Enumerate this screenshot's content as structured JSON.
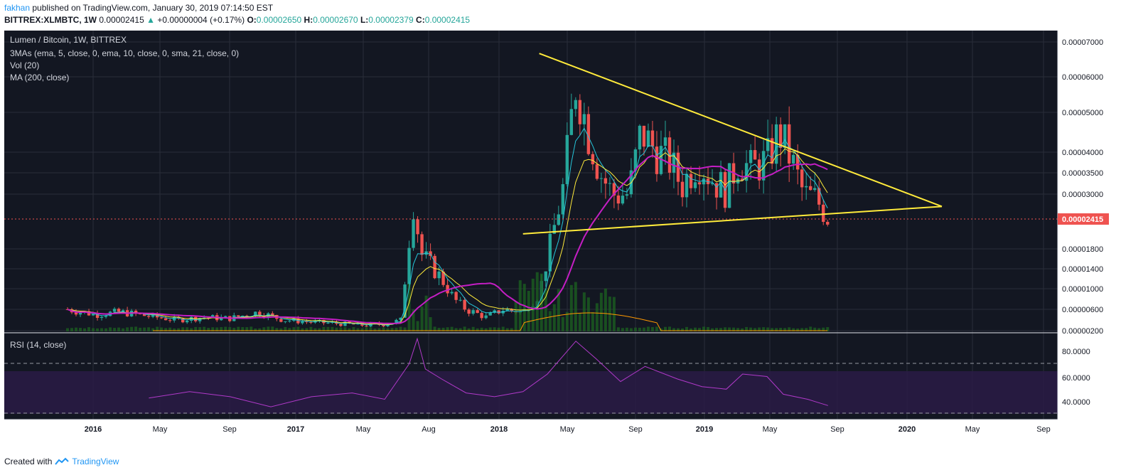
{
  "header": {
    "author": "fakhan",
    "published": "published on TradingView.com, January 30, 2019 07:14:50 EST",
    "symbol": "BITTREX:XLMBTC, 1W",
    "last": "0.00002415",
    "arrow": "▲",
    "change": "+0.00000004 (+0.17%)",
    "o_label": "O:",
    "o_value": "0.00002650",
    "h_label": "H:",
    "h_value": "0.00002670",
    "l_label": "L:",
    "l_value": "0.00002379",
    "c_label": "C:",
    "c_value": "0.00002415"
  },
  "legend": {
    "title": "Lumen / Bitcoin, 1W, BITTREX",
    "mas": "3MAs (ema, 5, close, 0, ema, 10, close, 0, sma, 21, close, 0)",
    "vol": "Vol (20)",
    "ma": "MA (200, close)",
    "rsi": "RSI (14, close)"
  },
  "footer": {
    "created": "Created with",
    "brand": "TradingView"
  },
  "colors": {
    "background": "#131722",
    "grid": "#2a2e39",
    "bull": "#26a69a",
    "bear": "#ef5350",
    "ema5": "#26c6da",
    "ema10": "#ffeb3b",
    "sma21": "#c41ec4",
    "ma200": "#ff9800",
    "trendline": "#ffeb3b",
    "rsi": "#9c27b0",
    "price_label": "#ef5350"
  },
  "chart_data": {
    "type": "candlestick",
    "symbol": "XLMBTC",
    "interval": "1W",
    "exchange": "BITTREX",
    "last_price": 2.415e-05,
    "price_axis_ticks": [
      "0.00007000",
      "0.00006000",
      "0.00005000",
      "0.00004000",
      "0.00003500",
      "0.00003000",
      "0.00001800",
      "0.00001400",
      "0.00001000",
      "0.00000600",
      "0.00000200"
    ],
    "price_label": "0.00002415",
    "time_axis_ticks": [
      "2016",
      "May",
      "Sep",
      "2017",
      "May",
      "Aug",
      "2018",
      "May",
      "Sep",
      "2019",
      "May",
      "Sep",
      "2020",
      "May",
      "Sep"
    ],
    "rsi_axis_ticks": [
      "80.0000",
      "60.0000",
      "40.0000"
    ],
    "rsi_bands": [
      30,
      70
    ],
    "price_path": [
      [
        0.0,
        6e-06
      ],
      [
        0.07,
        5e-06
      ],
      [
        0.13,
        5.5e-06
      ],
      [
        0.2,
        4.7e-06
      ],
      [
        0.27,
        4e-06
      ],
      [
        0.33,
        4.5e-06
      ],
      [
        0.4,
        4.3e-06
      ],
      [
        0.47,
        5.5e-06
      ],
      [
        0.53,
        4e-06
      ],
      [
        0.6,
        3.6e-06
      ],
      [
        0.67,
        3.3e-06
      ],
      [
        0.73,
        3e-06
      ],
      [
        0.78,
        3.2e-06
      ],
      [
        0.82,
        4e-06
      ],
      [
        0.85,
        2.85e-05
      ],
      [
        0.87,
        1.7e-05
      ],
      [
        0.89,
        1.5e-05
      ],
      [
        0.92,
        1.2e-05
      ],
      [
        0.95,
        8e-06
      ],
      [
        0.98,
        6e-06
      ],
      [
        1.03,
        4.5e-06
      ],
      [
        1.07,
        6e-06
      ],
      [
        1.12,
        5.5e-06
      ],
      [
        1.16,
        9e-06
      ],
      [
        1.19,
        2e-05
      ],
      [
        1.22,
        3.2e-05
      ],
      [
        1.25,
        5.8e-05
      ],
      [
        1.28,
        4.5e-05
      ],
      [
        1.31,
        3.5e-05
      ],
      [
        1.34,
        3e-05
      ],
      [
        1.38,
        3e-05
      ],
      [
        1.41,
        4.5e-05
      ],
      [
        1.45,
        4e-05
      ],
      [
        1.48,
        3.8e-05
      ],
      [
        1.51,
        3.2e-05
      ],
      [
        1.55,
        3.8e-05
      ],
      [
        1.59,
        3.3e-05
      ],
      [
        1.62,
        3.1e-05
      ],
      [
        1.65,
        3.8e-05
      ],
      [
        1.68,
        3.6e-05
      ],
      [
        1.72,
        3.8e-05
      ],
      [
        1.75,
        4.5e-05
      ],
      [
        1.78,
        3.8e-05
      ],
      [
        1.81,
        3e-05
      ],
      [
        1.84,
        2.9e-05
      ],
      [
        1.87,
        2.5e-05
      ]
    ],
    "trendlines": [
      {
        "name": "upper",
        "from": [
          1.16,
          6.67e-05
        ],
        "to": [
          2.15,
          2.73e-05
        ]
      },
      {
        "name": "lower",
        "from": [
          1.12,
          2.13e-05
        ],
        "to": [
          2.15,
          2.73e-05
        ]
      }
    ],
    "rsi_path": [
      [
        0.2,
        43
      ],
      [
        0.3,
        48
      ],
      [
        0.4,
        44
      ],
      [
        0.5,
        36
      ],
      [
        0.6,
        44
      ],
      [
        0.7,
        47
      ],
      [
        0.78,
        42
      ],
      [
        0.84,
        70
      ],
      [
        0.86,
        90
      ],
      [
        0.88,
        66
      ],
      [
        0.92,
        58
      ],
      [
        0.98,
        47
      ],
      [
        1.05,
        44
      ],
      [
        1.12,
        48
      ],
      [
        1.18,
        62
      ],
      [
        1.25,
        88
      ],
      [
        1.3,
        74
      ],
      [
        1.36,
        56
      ],
      [
        1.42,
        68
      ],
      [
        1.5,
        58
      ],
      [
        1.56,
        52
      ],
      [
        1.62,
        50
      ],
      [
        1.66,
        62
      ],
      [
        1.72,
        60
      ],
      [
        1.76,
        46
      ],
      [
        1.82,
        42
      ],
      [
        1.87,
        37
      ]
    ]
  }
}
